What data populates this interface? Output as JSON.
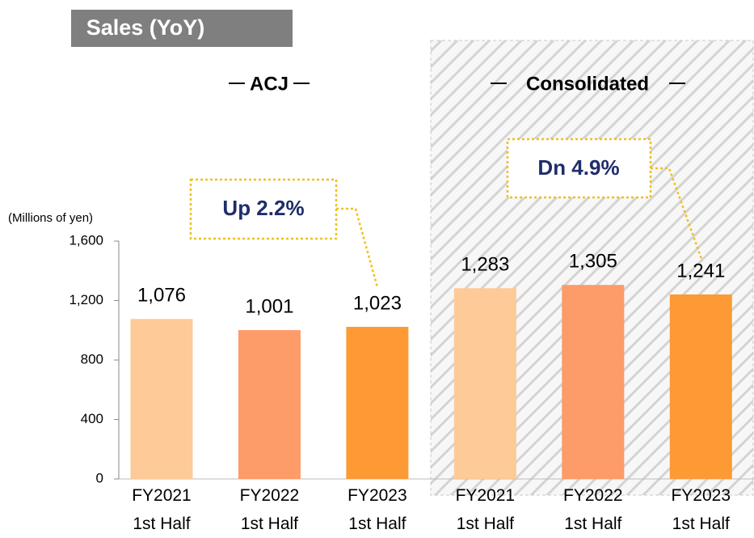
{
  "chart_data": {
    "type": "bar",
    "title": "Sales (YoY)",
    "y_label": "(Millions of yen)",
    "groups": [
      "ACJ",
      "Consolidated"
    ],
    "annotations": [
      "Up 2.2%",
      "Dn 4.9%"
    ],
    "categories": [
      "FY2021\n1st Half",
      "FY2022\n1st Half",
      "FY2023\n1st Half",
      "FY2021\n1st Half",
      "FY2022\n1st Half",
      "FY2023\n1st Half"
    ],
    "values": [
      1076,
      1001,
      1023,
      1283,
      1305,
      1241
    ],
    "value_labels": [
      "1,076",
      "1,001",
      "1,023",
      "1,283",
      "1,305",
      "1,241"
    ],
    "colors": [
      "#fdca98",
      "#fd9b69",
      "#fd9a34",
      "#fdca98",
      "#fd9b69",
      "#fd9a34"
    ],
    "ylim": [
      0,
      1600
    ],
    "yticks": [
      0,
      400,
      800,
      {
        "value": 1200,
        "label": "1,200"
      },
      {
        "value": 1600,
        "label": "1,600"
      }
    ],
    "grid": false
  }
}
